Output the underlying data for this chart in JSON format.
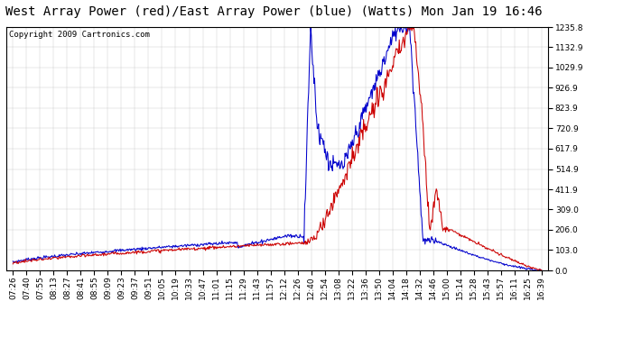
{
  "title": "West Array Power (red)/East Array Power (blue) (Watts) Mon Jan 19 16:46",
  "copyright": "Copyright 2009 Cartronics.com",
  "yticks": [
    0.0,
    103.0,
    206.0,
    309.0,
    411.9,
    514.9,
    617.9,
    720.9,
    823.9,
    926.9,
    1029.9,
    1132.9,
    1235.8
  ],
  "ylim": [
    0.0,
    1235.8
  ],
  "xtick_labels": [
    "07:26",
    "07:40",
    "07:55",
    "08:13",
    "08:27",
    "08:41",
    "08:55",
    "09:09",
    "09:23",
    "09:37",
    "09:51",
    "10:05",
    "10:19",
    "10:33",
    "10:47",
    "11:01",
    "11:15",
    "11:29",
    "11:43",
    "11:57",
    "12:12",
    "12:26",
    "12:40",
    "12:54",
    "13:08",
    "13:22",
    "13:36",
    "13:50",
    "14:04",
    "14:18",
    "14:32",
    "14:46",
    "15:00",
    "15:14",
    "15:28",
    "15:43",
    "15:57",
    "16:11",
    "16:25",
    "16:39"
  ],
  "bg_color": "#ffffff",
  "plot_bg": "#ffffff",
  "grid_color": "#bbbbbb",
  "red_color": "#cc0000",
  "blue_color": "#0000cc",
  "title_fontsize": 10,
  "copyright_fontsize": 6.5,
  "tick_fontsize": 6.5
}
